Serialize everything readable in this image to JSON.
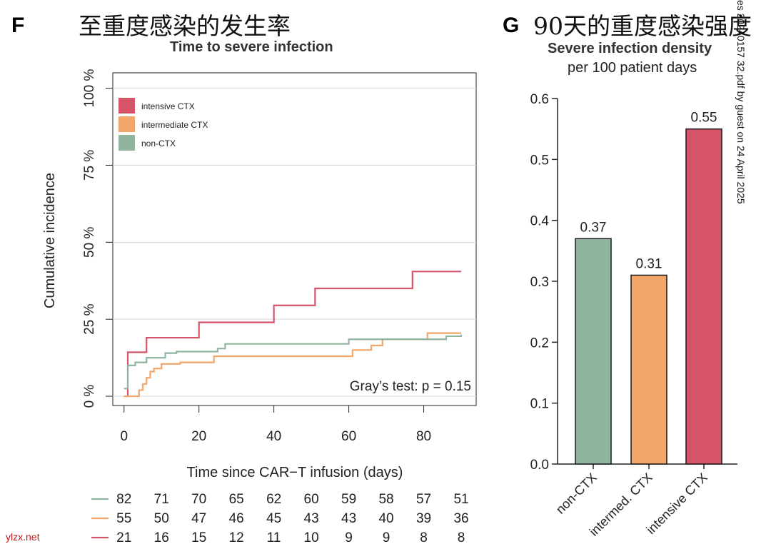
{
  "panel_f": {
    "letter": "F",
    "cn_title": "至重度感染的发生率"
  },
  "panel_g": {
    "letter": "G",
    "cn_title": "90天的重度感染强度"
  },
  "watermark": "es 20240157 32.pdf by guest on 24 April 2025",
  "site_label": "ylzx.net",
  "colors": {
    "intensive": "#d6546a",
    "intermediate": "#f2a66a",
    "non": "#8fb59e",
    "axis": "#222222",
    "grid": "#d9d9d9"
  },
  "chart_data": [
    {
      "type": "line",
      "title": "Time to severe infection",
      "xlabel": "Time since CAR−T infusion (days)",
      "ylabel": "Cumulative incidence",
      "xlim": [
        -3,
        94
      ],
      "ylim": [
        -3,
        105
      ],
      "xticks": [
        0,
        20,
        40,
        60,
        80
      ],
      "yticks": [
        0,
        25,
        50,
        75,
        100
      ],
      "ytick_labels": [
        "0 %",
        "25 %",
        "50 %",
        "75 %",
        "100 %"
      ],
      "legend_location": "top-left",
      "annotation": "Gray’s test: p = 0.15",
      "series": [
        {
          "name": "intensive CTX",
          "color": "#d6546a",
          "x": [
            0,
            1,
            6,
            20,
            40,
            51,
            77,
            90
          ],
          "y": [
            0,
            14.3,
            19,
            24,
            29.5,
            35,
            40.5,
            40.5
          ]
        },
        {
          "name": "intermediate CTX",
          "color": "#f2a66a",
          "x": [
            0,
            4,
            5,
            6,
            7,
            8,
            10,
            15,
            24,
            61,
            66,
            69,
            81,
            90
          ],
          "y": [
            0,
            2,
            4,
            6,
            8,
            9,
            10.5,
            11,
            13,
            15,
            16.5,
            18.5,
            20.5,
            20.5
          ]
        },
        {
          "name": "non-CTX",
          "color": "#8fb59e",
          "x": [
            0,
            1,
            3,
            6,
            11,
            14,
            25,
            27,
            60,
            67,
            86,
            90
          ],
          "y": [
            2.5,
            10,
            11,
            12.5,
            14,
            14.5,
            15.5,
            17,
            18.5,
            18.5,
            19.5,
            20
          ],
          "end_dashed": true
        }
      ],
      "risk_table": {
        "time_points": [
          0,
          10,
          20,
          30,
          40,
          50,
          60,
          70,
          80,
          90
        ],
        "rows": [
          {
            "name": "non-CTX",
            "color": "#8fb59e",
            "values": [
              "82",
              "71",
              "70",
              "65",
              "62",
              "60",
              "59",
              "58",
              "57",
              "51"
            ]
          },
          {
            "name": "intermediate CTX",
            "color": "#f2a66a",
            "values": [
              "55",
              "50",
              "47",
              "46",
              "45",
              "43",
              "43",
              "40",
              "39",
              "36"
            ]
          },
          {
            "name": "intensive CTX",
            "color": "#d6546a",
            "values": [
              "21",
              "16",
              "15",
              "12",
              "11",
              "10",
              "9",
              "9",
              "8",
              "8"
            ]
          }
        ]
      }
    },
    {
      "type": "bar",
      "title": "Severe infection density",
      "subtitle": "per 100 patient days",
      "categories": [
        "non-CTX",
        "intermed. CTX",
        "intensive CTX"
      ],
      "values": [
        0.37,
        0.31,
        0.55
      ],
      "value_labels": [
        "0.37",
        "0.31",
        "0.55"
      ],
      "colors": [
        "#8fb59e",
        "#f2a66a",
        "#d6546a"
      ],
      "ylim": [
        0,
        0.6
      ],
      "yticks": [
        0.0,
        0.1,
        0.2,
        0.3,
        0.4,
        0.5,
        0.6
      ],
      "ytick_labels": [
        "0.0",
        "0.1",
        "0.2",
        "0.3",
        "0.4",
        "0.5",
        "0.6"
      ]
    }
  ]
}
